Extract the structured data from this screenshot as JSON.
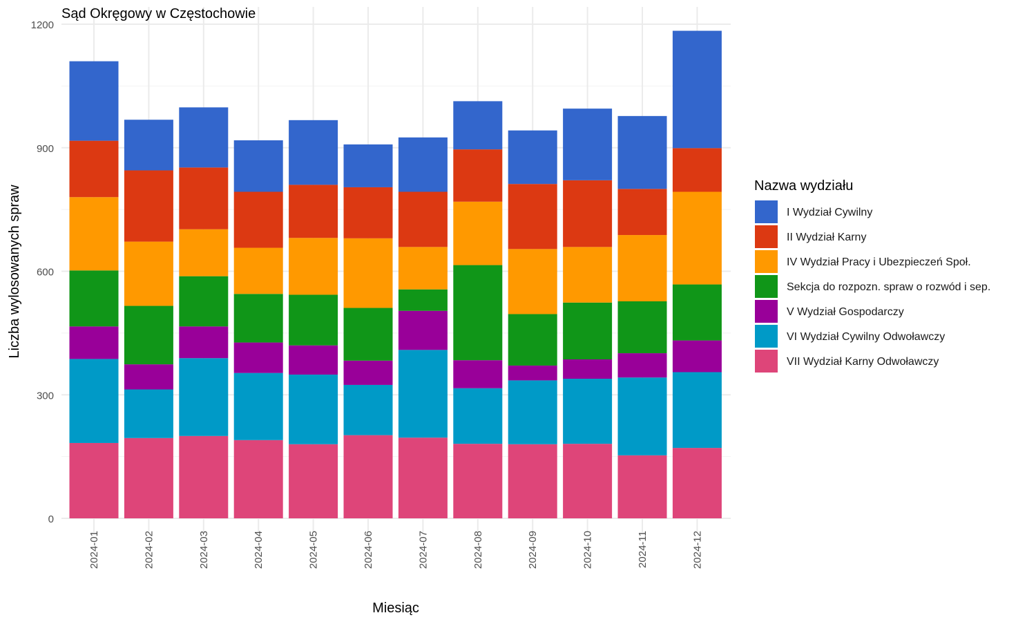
{
  "chart_data": {
    "type": "bar",
    "stacked": true,
    "title": "Sąd Okręgowy w Częstochowie",
    "xlabel": "Miesiąc",
    "ylabel": "Liczba wylosowanych spraw",
    "ylim": [
      0,
      1200
    ],
    "yticks": [
      0,
      300,
      600,
      900,
      1200
    ],
    "grid": true,
    "legend_position": "right",
    "legend_title": "Nazwa wydziału",
    "categories": [
      "2024-01",
      "2024-02",
      "2024-03",
      "2024-04",
      "2024-05",
      "2024-06",
      "2024-07",
      "2024-08",
      "2024-09",
      "2024-10",
      "2024-11",
      "2024-12"
    ],
    "series": [
      {
        "name": "VII Wydział Karny Odwoławczy",
        "color": "#DE4579",
        "values": [
          183,
          195,
          200,
          190,
          180,
          202,
          196,
          181,
          180,
          181,
          153,
          171
        ]
      },
      {
        "name": "VI Wydział Cywilny Odwoławczy",
        "color": "#009AC7",
        "values": [
          204,
          118,
          189,
          163,
          169,
          122,
          213,
          135,
          155,
          158,
          189,
          184
        ]
      },
      {
        "name": "V Wydział Gospodarczy",
        "color": "#990099",
        "values": [
          79,
          61,
          77,
          74,
          71,
          59,
          95,
          68,
          36,
          47,
          59,
          77
        ]
      },
      {
        "name": "Sekcja do rozpozn. spraw o rozwód i sep.",
        "color": "#109618",
        "values": [
          136,
          142,
          122,
          118,
          123,
          128,
          52,
          231,
          125,
          138,
          126,
          136
        ]
      },
      {
        "name": "IV Wydział Pracy i Ubezpieczeń Społ.",
        "color": "#FF9900",
        "values": [
          178,
          156,
          114,
          112,
          138,
          169,
          103,
          154,
          158,
          135,
          161,
          225
        ]
      },
      {
        "name": "II Wydział Karny",
        "color": "#DC3912",
        "values": [
          137,
          173,
          150,
          136,
          129,
          124,
          134,
          127,
          158,
          162,
          112,
          106
        ]
      },
      {
        "name": "I Wydział Cywilny",
        "color": "#3366CC",
        "values": [
          193,
          123,
          146,
          125,
          157,
          104,
          132,
          117,
          130,
          174,
          177,
          285
        ]
      }
    ]
  }
}
